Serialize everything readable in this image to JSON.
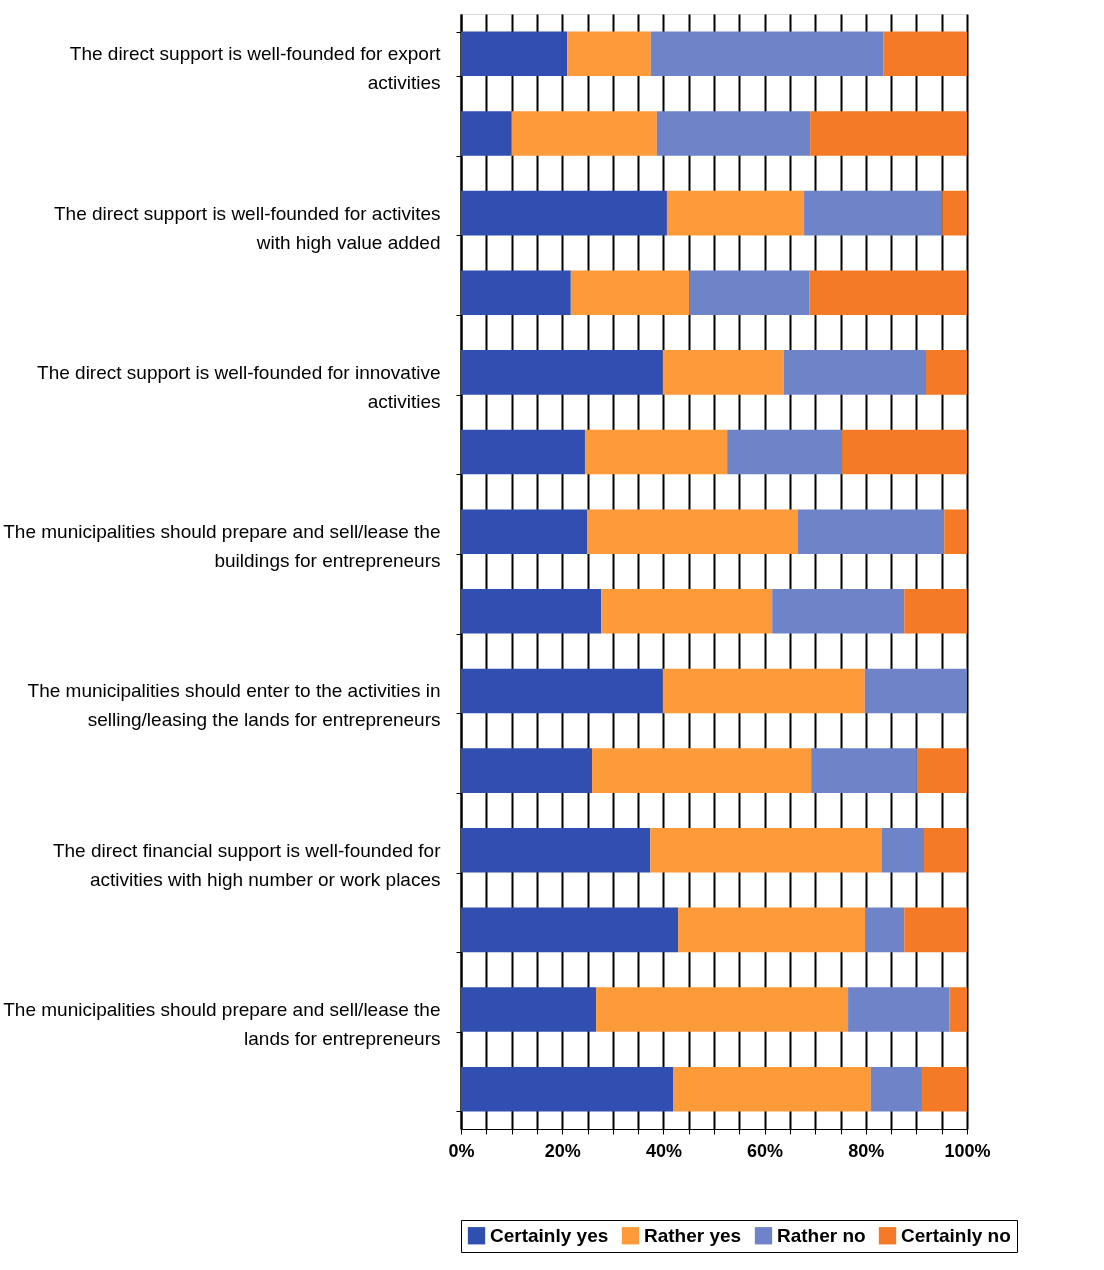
{
  "chart_data": {
    "type": "bar",
    "orientation": "horizontal",
    "stacked": true,
    "categories": [
      "The direct support is well-founded for export activities",
      null,
      "The direct support is well-founded for activites with high value added",
      null,
      "The direct support is well-founded for innovative activities",
      null,
      "The municipalities should prepare and sell/lease the buildings for entrepreneurs",
      null,
      "The municipalities should enter to the activities in selling/leasing the lands for entrepreneurs",
      null,
      "The direct financial support is well-founded for activities with high number or work places",
      null,
      "The municipalities should prepare and sell/lease the lands for entrepreneurs",
      null
    ],
    "series": [
      {
        "name": "Certainly yes",
        "color": "#314fb0",
        "values": [
          21,
          10,
          40.7,
          21.7,
          39.9,
          24.5,
          24.9,
          27.7,
          39.9,
          25.9,
          37.4,
          42.9,
          26.7,
          41.9
        ]
      },
      {
        "name": "Rather yes",
        "color": "#fd9a3a",
        "values": [
          16.5,
          28.7,
          27.1,
          23.5,
          23.9,
          28.1,
          41.7,
          33.8,
          39.9,
          43.3,
          45.8,
          37,
          49.8,
          39.1
        ]
      },
      {
        "name": "Rather no",
        "color": "#6f83c8",
        "values": [
          46,
          30.3,
          27.3,
          23.7,
          28.1,
          22.7,
          28.9,
          26.1,
          20.2,
          20.9,
          8.3,
          7.7,
          20,
          10.1
        ]
      },
      {
        "name": "Certainly no",
        "color": "#f47a26",
        "values": [
          16.5,
          31,
          4.9,
          31.1,
          8.1,
          24.7,
          4.5,
          12.4,
          0,
          9.9,
          8.5,
          12.4,
          3.5,
          8.9
        ]
      }
    ],
    "xlim": [
      0,
      100
    ],
    "xticks": [
      {
        "value": 0,
        "label": "0%"
      },
      {
        "value": 20,
        "label": "20%"
      },
      {
        "value": 40,
        "label": "40%"
      },
      {
        "value": 60,
        "label": "60%"
      },
      {
        "value": 80,
        "label": "80%"
      },
      {
        "value": 100,
        "label": "100%"
      }
    ],
    "grid": "x",
    "legend": "bottom"
  }
}
